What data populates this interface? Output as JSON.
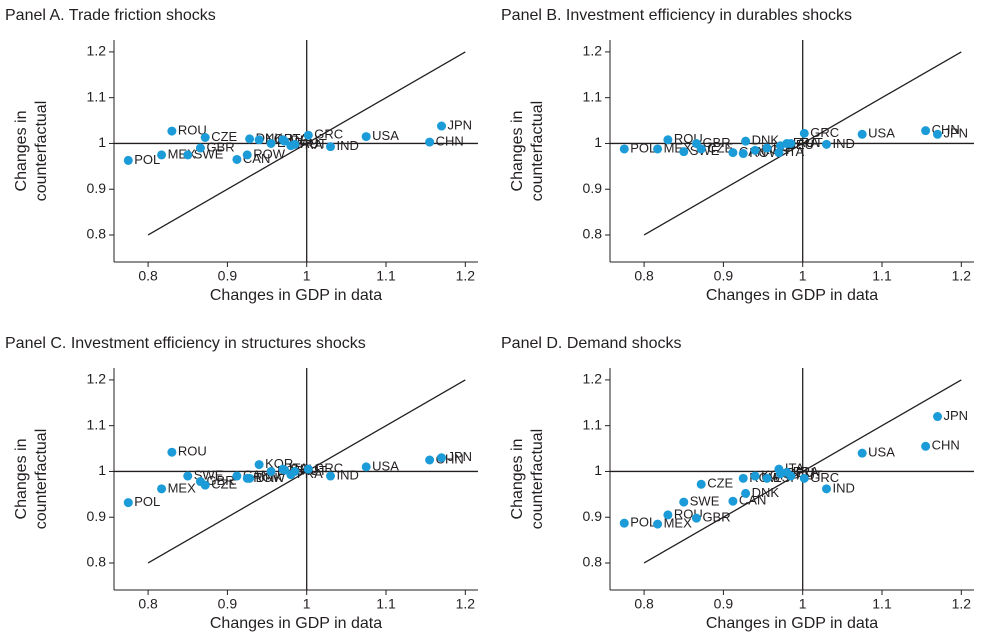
{
  "chart_data": [
    {
      "type": "scatter",
      "title": "Panel A. Trade friction shocks",
      "x_label": "Changes in GDP in data",
      "y_label": [
        "Changes in",
        "counterfactual"
      ],
      "color": "#1b9bd7",
      "labels": [
        "POL",
        "MEX",
        "ROU",
        "SWE",
        "GBR",
        "CZE",
        "CAN",
        "ROW",
        "DNK",
        "KOR",
        "ESP",
        "ITA",
        "DEU",
        "FRA",
        "AUT",
        "GRC",
        "IND",
        "USA",
        "CHN",
        "JPN"
      ],
      "x": [
        0.775,
        0.817,
        0.83,
        0.85,
        0.866,
        0.872,
        0.912,
        0.925,
        0.928,
        0.94,
        0.955,
        0.97,
        0.972,
        0.98,
        0.985,
        1.002,
        1.03,
        1.075,
        1.155,
        1.17
      ],
      "y": [
        0.963,
        0.975,
        1.027,
        0.975,
        0.99,
        1.013,
        0.965,
        0.975,
        1.01,
        1.008,
        1.0,
        1.008,
        1.005,
        0.995,
        0.998,
        1.018,
        0.993,
        1.015,
        1.003,
        1.038
      ],
      "xlim": [
        0.757,
        1.216
      ],
      "ylim": [
        0.741,
        1.226
      ],
      "xticks": [
        0.8,
        0.9,
        1,
        1.1,
        1.2
      ],
      "yticks": [
        0.8,
        0.9,
        1,
        1.1,
        1.2
      ],
      "diagonal": [
        0.8,
        1.2
      ],
      "hline": 1,
      "vline": 1
    },
    {
      "type": "scatter",
      "title": "Panel B. Investment efficiency in durables shocks",
      "x_label": "Changes in GDP in data",
      "y_label": [
        "Changes in",
        "counterfactual"
      ],
      "color": "#1b9bd7",
      "labels": [
        "POL",
        "MEX",
        "ROU",
        "SWE",
        "GBR",
        "CZE",
        "CAN",
        "ROW",
        "DNK",
        "KOR",
        "ESP",
        "ITA",
        "DEU",
        "FRA",
        "AUT",
        "GRC",
        "IND",
        "USA",
        "CHN",
        "JPN"
      ],
      "x": [
        0.775,
        0.817,
        0.83,
        0.85,
        0.866,
        0.872,
        0.912,
        0.925,
        0.928,
        0.94,
        0.955,
        0.97,
        0.972,
        0.98,
        0.985,
        1.002,
        1.03,
        1.075,
        1.155,
        1.17
      ],
      "y": [
        0.988,
        0.988,
        1.008,
        0.982,
        1.0,
        0.988,
        0.98,
        0.978,
        1.005,
        0.985,
        0.99,
        0.98,
        0.995,
        1.0,
        1.0,
        1.022,
        0.998,
        1.02,
        1.028,
        1.02
      ],
      "xlim": [
        0.757,
        1.216
      ],
      "ylim": [
        0.741,
        1.226
      ],
      "xticks": [
        0.8,
        0.9,
        1,
        1.1,
        1.2
      ],
      "yticks": [
        0.8,
        0.9,
        1,
        1.1,
        1.2
      ],
      "diagonal": [
        0.8,
        1.2
      ],
      "hline": 1,
      "vline": 1
    },
    {
      "type": "scatter",
      "title": "Panel C. Investment efficiency in structures shocks",
      "x_label": "Changes in GDP in data",
      "y_label": [
        "Changes in",
        "counterfactual"
      ],
      "color": "#1b9bd7",
      "labels": [
        "POL",
        "MEX",
        "ROU",
        "SWE",
        "GBR",
        "CZE",
        "CAN",
        "ROW",
        "DNK",
        "KOR",
        "ESP",
        "ITA",
        "DEU",
        "FRA",
        "AUT",
        "GRC",
        "IND",
        "USA",
        "CHN",
        "JPN"
      ],
      "x": [
        0.775,
        0.817,
        0.83,
        0.85,
        0.866,
        0.872,
        0.912,
        0.925,
        0.928,
        0.94,
        0.955,
        0.97,
        0.972,
        0.98,
        0.985,
        1.002,
        1.03,
        1.075,
        1.155,
        1.17
      ],
      "y": [
        0.932,
        0.962,
        1.042,
        0.99,
        0.978,
        0.97,
        0.99,
        0.985,
        0.985,
        1.015,
        1.0,
        1.005,
        1.003,
        0.993,
        1.0,
        1.005,
        0.99,
        1.01,
        1.025,
        1.03
      ],
      "xlim": [
        0.757,
        1.216
      ],
      "ylim": [
        0.741,
        1.226
      ],
      "xticks": [
        0.8,
        0.9,
        1,
        1.1,
        1.2
      ],
      "yticks": [
        0.8,
        0.9,
        1,
        1.1,
        1.2
      ],
      "diagonal": [
        0.8,
        1.2
      ],
      "hline": 1,
      "vline": 1
    },
    {
      "type": "scatter",
      "title": "Panel D. Demand shocks",
      "x_label": "Changes in GDP in data",
      "y_label": [
        "Changes in",
        "counterfactual"
      ],
      "color": "#1b9bd7",
      "labels": [
        "POL",
        "MEX",
        "ROU",
        "SWE",
        "GBR",
        "CZE",
        "CAN",
        "ROW",
        "DNK",
        "KOR",
        "ESP",
        "ITA",
        "DEU",
        "FRA",
        "AUT",
        "GRC",
        "IND",
        "USA",
        "CHN",
        "JPN"
      ],
      "x": [
        0.775,
        0.817,
        0.83,
        0.85,
        0.866,
        0.872,
        0.912,
        0.925,
        0.928,
        0.94,
        0.955,
        0.97,
        0.972,
        0.98,
        0.985,
        1.002,
        1.03,
        1.075,
        1.155,
        1.17
      ],
      "y": [
        0.887,
        0.885,
        0.905,
        0.933,
        0.898,
        0.972,
        0.935,
        0.985,
        0.952,
        0.99,
        0.985,
        1.005,
        0.995,
        0.998,
        0.99,
        0.985,
        0.962,
        1.04,
        1.055,
        1.12
      ],
      "xlim": [
        0.757,
        1.216
      ],
      "ylim": [
        0.741,
        1.226
      ],
      "xticks": [
        0.8,
        0.9,
        1,
        1.1,
        1.2
      ],
      "yticks": [
        0.8,
        0.9,
        1,
        1.1,
        1.2
      ],
      "diagonal": [
        0.8,
        1.2
      ],
      "hline": 1,
      "vline": 1
    }
  ]
}
